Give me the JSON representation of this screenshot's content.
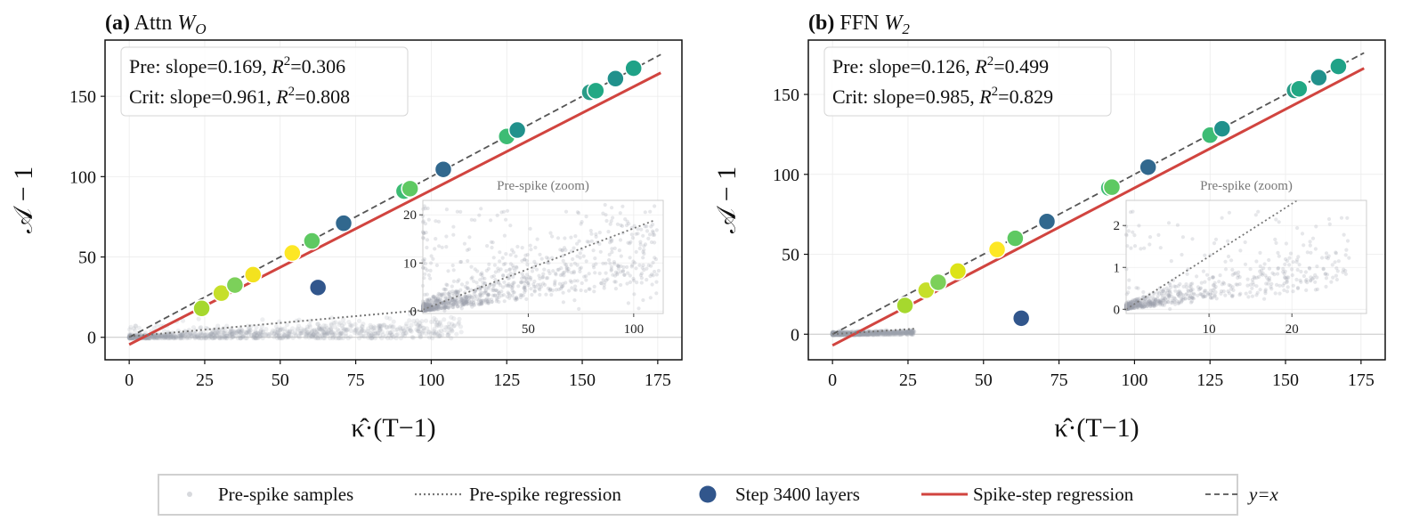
{
  "chart_data": [
    {
      "type": "scatter",
      "panel_label": "(a)",
      "title": "Attn W_O",
      "title_text": "Attn",
      "title_var": "W",
      "title_sub": "O",
      "xlabel": "κ̂·(T−1)",
      "ylabel": "𝒜 − 1",
      "xlim": [
        -8,
        183
      ],
      "ylim": [
        -14,
        185
      ],
      "xticks": [
        0,
        25,
        50,
        75,
        100,
        125,
        150,
        175
      ],
      "yticks": [
        0,
        50,
        100,
        150
      ],
      "grid": true,
      "stats": {
        "pre": {
          "prefix": "Pre:  slope=",
          "slope": "0.169",
          "r2": "0.306"
        },
        "crit": {
          "prefix": "Crit: slope=",
          "slope": "0.961",
          "r2": "0.808"
        }
      },
      "pre_regression": {
        "slope": 0.169,
        "intercept": 0.5,
        "x_range": [
          0,
          110
        ]
      },
      "spike_regression": {
        "slope": 0.961,
        "intercept": -4.5,
        "x_range": [
          0,
          176
        ]
      },
      "identity": {
        "x_range": [
          0,
          176
        ]
      },
      "spike_points": [
        {
          "x": 24,
          "y": 18,
          "c": "#a6d82e"
        },
        {
          "x": 30.5,
          "y": 27.5,
          "c": "#c6df2a"
        },
        {
          "x": 35,
          "y": 32.5,
          "c": "#7cd05a"
        },
        {
          "x": 41,
          "y": 39,
          "c": "#f3e21f"
        },
        {
          "x": 54,
          "y": 52.5,
          "c": "#fde725"
        },
        {
          "x": 60.5,
          "y": 60,
          "c": "#5ec962"
        },
        {
          "x": 62.5,
          "y": 31,
          "c": "#31568c"
        },
        {
          "x": 71,
          "y": 71,
          "c": "#31688e"
        },
        {
          "x": 91,
          "y": 91,
          "c": "#3dbc74"
        },
        {
          "x": 93,
          "y": 92.5,
          "c": "#5ec962"
        },
        {
          "x": 104,
          "y": 104.5,
          "c": "#31688e"
        },
        {
          "x": 125,
          "y": 125,
          "c": "#3dbc74"
        },
        {
          "x": 128.5,
          "y": 129,
          "c": "#21918c"
        },
        {
          "x": 152.5,
          "y": 152.5,
          "c": "#2a9c87"
        },
        {
          "x": 154.5,
          "y": 153.5,
          "c": "#22a884"
        },
        {
          "x": 161,
          "y": 161,
          "c": "#21918c"
        },
        {
          "x": 167,
          "y": 167.5,
          "c": "#1fa287"
        }
      ],
      "inset": {
        "title": "Pre-spike (zoom)",
        "xlim": [
          0,
          114
        ],
        "ylim": [
          -0.5,
          23
        ],
        "xticks": [
          50,
          100
        ],
        "yticks": [
          0,
          10,
          20
        ],
        "regression": {
          "slope": 0.169,
          "intercept": 0.3,
          "x_range": [
            0,
            110
          ]
        }
      }
    },
    {
      "type": "scatter",
      "panel_label": "(b)",
      "title": "FFN W_2",
      "title_text": "FFN",
      "title_var": "W",
      "title_sub": "2",
      "xlabel": "κ̂·(T−1)",
      "ylabel": "𝒜 − 1",
      "xlim": [
        -8,
        183
      ],
      "ylim": [
        -16,
        184
      ],
      "xticks": [
        0,
        25,
        50,
        75,
        100,
        125,
        150,
        175
      ],
      "yticks": [
        0,
        50,
        100,
        150
      ],
      "grid": true,
      "stats": {
        "pre": {
          "prefix": "Pre:  slope=",
          "slope": "0.126",
          "r2": "0.499"
        },
        "crit": {
          "prefix": "Crit: slope=",
          "slope": "0.985",
          "r2": "0.829"
        }
      },
      "pre_regression": {
        "slope": 0.126,
        "intercept": 0.0,
        "x_range": [
          0,
          27
        ]
      },
      "spike_regression": {
        "slope": 0.985,
        "intercept": -7.0,
        "x_range": [
          0,
          176
        ]
      },
      "identity": {
        "x_range": [
          0,
          176
        ]
      },
      "spike_points": [
        {
          "x": 24,
          "y": 18,
          "c": "#a6d82e"
        },
        {
          "x": 31,
          "y": 27.5,
          "c": "#c6df2a"
        },
        {
          "x": 35,
          "y": 32.5,
          "c": "#7cd05a"
        },
        {
          "x": 41.5,
          "y": 39.5,
          "c": "#dde318"
        },
        {
          "x": 54.5,
          "y": 53,
          "c": "#fde725"
        },
        {
          "x": 60.5,
          "y": 60,
          "c": "#5ec962"
        },
        {
          "x": 62.5,
          "y": 10,
          "c": "#31568c"
        },
        {
          "x": 71,
          "y": 70.5,
          "c": "#31688e"
        },
        {
          "x": 91.5,
          "y": 91.5,
          "c": "#3dbc74"
        },
        {
          "x": 92.5,
          "y": 92,
          "c": "#5ec962"
        },
        {
          "x": 104.5,
          "y": 104.5,
          "c": "#31688e"
        },
        {
          "x": 125,
          "y": 124.5,
          "c": "#3dbc74"
        },
        {
          "x": 129,
          "y": 128.5,
          "c": "#21918c"
        },
        {
          "x": 153,
          "y": 152.5,
          "c": "#2a9c87"
        },
        {
          "x": 154.5,
          "y": 153.5,
          "c": "#22a884"
        },
        {
          "x": 161,
          "y": 160.5,
          "c": "#21918c"
        },
        {
          "x": 167.5,
          "y": 167.5,
          "c": "#1fa287"
        }
      ],
      "inset": {
        "title": "Pre-spike (zoom)",
        "xlim": [
          0,
          29
        ],
        "ylim": [
          -0.1,
          2.6
        ],
        "xticks": [
          10,
          20
        ],
        "yticks": [
          0,
          1,
          2
        ],
        "regression": {
          "slope": 0.126,
          "intercept": 0.0,
          "x_range": [
            0,
            27
          ]
        }
      }
    }
  ],
  "legend": {
    "placement": "bottom-center",
    "items": [
      {
        "label": "Pre-spike samples",
        "kind": "dot-light"
      },
      {
        "label": "Pre-spike regression",
        "kind": "dotted"
      },
      {
        "label": "Step 3400 layers",
        "kind": "dot-dark"
      },
      {
        "label": "Spike-step regression",
        "kind": "solid-red"
      },
      {
        "label": "y=x",
        "kind": "dashed"
      }
    ]
  },
  "colors": {
    "pre_samples": "#9aa0ab",
    "pre_regression": "#777777",
    "spike_regression": "#d1443f",
    "identity": "#555555",
    "step_points": "#31568c"
  }
}
